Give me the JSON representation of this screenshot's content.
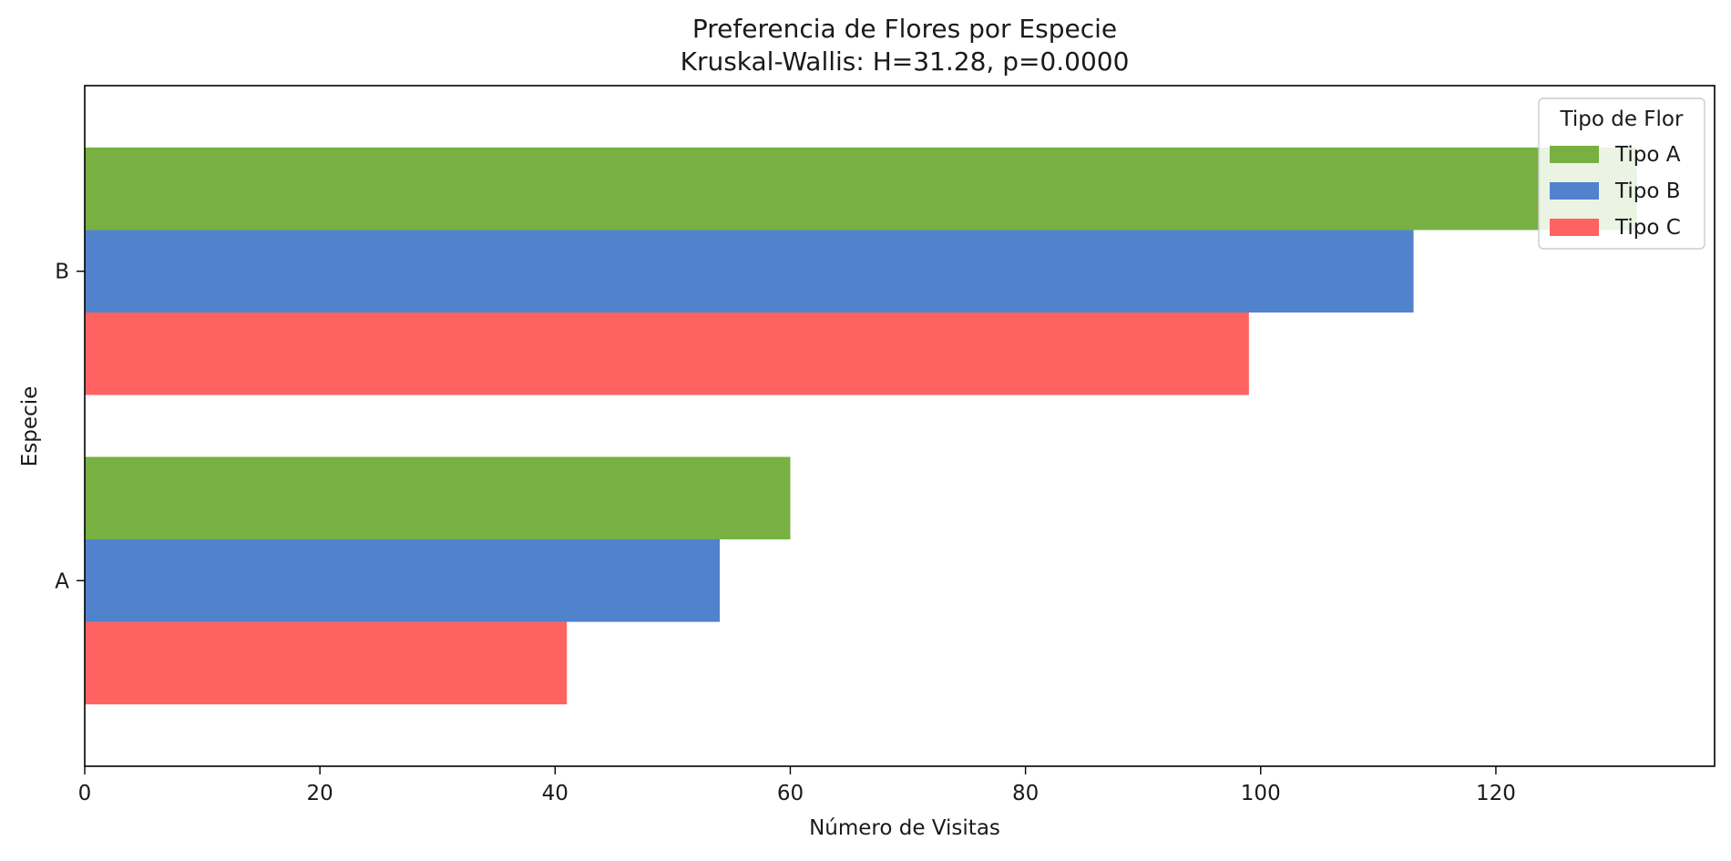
{
  "chart_data": {
    "type": "bar",
    "orientation": "horizontal",
    "title": "Preferencia de Flores por Especie",
    "subtitle": "Kruskal-Wallis: H=31.28, p=0.0000",
    "xlabel": "Número de Visitas",
    "ylabel": "Especie",
    "categories": [
      "A",
      "B"
    ],
    "series": [
      {
        "name": "Tipo A",
        "values": [
          60,
          132
        ],
        "color": "#78b042"
      },
      {
        "name": "Tipo B",
        "values": [
          54,
          113
        ],
        "color": "#5083cc"
      },
      {
        "name": "Tipo C",
        "values": [
          41,
          99
        ],
        "color": "#ff6361"
      }
    ],
    "xlim": [
      0,
      138.6
    ],
    "xticks": [
      0,
      20,
      40,
      60,
      80,
      100,
      120
    ],
    "grid": false,
    "legend": {
      "title": "Tipo de Flor",
      "placement": "top-right"
    }
  }
}
